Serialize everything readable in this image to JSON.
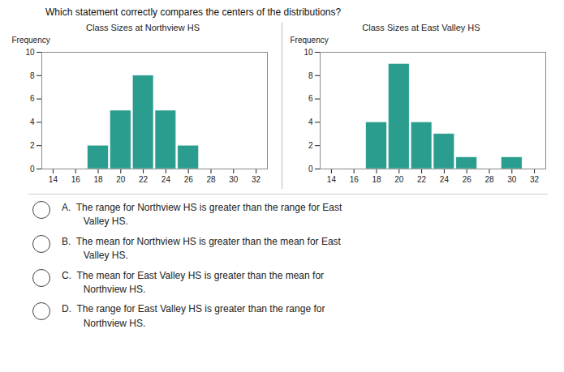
{
  "title": "Which statement correctly compares the centers of the distributions?",
  "annotations": [
    "A.  The range for Northview HS is greater than the range for East\n        Valley HS.",
    "B.  The mean for Northview HS is greater than the mean for East\n        Valley HS.",
    "C.  The mean for East Valley HS is greater than the mean for\n        Northview HS.",
    "D.  The range for East Valley HS is greater than the range for\n        Northview HS."
  ],
  "chart_data": [
    {
      "type": "bar",
      "title": "Class Sizes at Northview HS",
      "ylabel": "Frequency",
      "x": [
        14,
        16,
        18,
        20,
        22,
        24,
        26,
        28,
        30,
        32
      ],
      "values": [
        0,
        0,
        2,
        5,
        8,
        5,
        2,
        0,
        0,
        0
      ],
      "color": "#2a9d8f",
      "xlim": [
        13,
        33
      ],
      "xticks": [
        14,
        16,
        18,
        20,
        22,
        24,
        26,
        28,
        30,
        32
      ],
      "ylim": [
        0,
        10
      ],
      "yticks": [
        0,
        2,
        4,
        6,
        8,
        10
      ],
      "grid": false
    },
    {
      "type": "bar",
      "title": "Class Sizes at East Valley HS",
      "ylabel": "Frequency",
      "x": [
        14,
        16,
        18,
        20,
        22,
        24,
        26,
        28,
        30,
        32
      ],
      "values": [
        0,
        0,
        4,
        9,
        4,
        3,
        1,
        0,
        1,
        0
      ],
      "color": "#2a9d8f",
      "xlim": [
        13,
        33
      ],
      "xticks": [
        14,
        16,
        18,
        20,
        22,
        24,
        26,
        28,
        30,
        32
      ],
      "ylim": [
        0,
        10
      ],
      "yticks": [
        0,
        2,
        4,
        6,
        8,
        10
      ],
      "grid": false
    }
  ]
}
